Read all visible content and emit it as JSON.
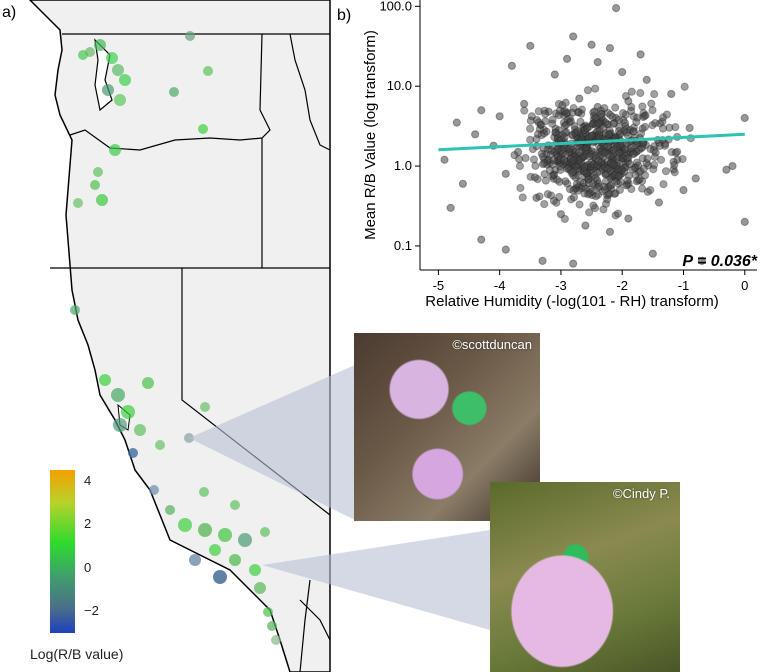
{
  "panel_a": {
    "label": "a)",
    "colorbar": {
      "title": "Log(R/B value)",
      "ticks": [
        "4",
        "2",
        "0",
        "−2"
      ],
      "tick_values": [
        4,
        2,
        0,
        -2
      ],
      "range": [
        -3,
        4.5
      ],
      "colors": [
        "#1f3fbf",
        "#4a6e8a",
        "#3fa06a",
        "#2ddb2d",
        "#b8d22a",
        "#f5a000"
      ]
    },
    "land_color": "#f0f0f0",
    "water_color": "#ffffff"
  },
  "panel_b": {
    "label": "b)",
    "p_value_text": "P = 0.036*",
    "trend_color": "#2bc4b4"
  },
  "photos": [
    {
      "credit": "©scottduncan"
    },
    {
      "credit": "©Cindy P."
    }
  ],
  "chart_data": {
    "type": "scatter",
    "xlabel": "Relative Humidity (-log(101 - RH) transform)",
    "ylabel": "Mean R/B Value (log transform)",
    "xlim": [
      -5.3,
      0.2
    ],
    "ylim": [
      0.05,
      120
    ],
    "yscale": "log",
    "x_ticks": [
      "-5",
      "-4",
      "-3",
      "-2",
      "-1",
      "0"
    ],
    "x_tick_values": [
      -5,
      -4,
      -3,
      -2,
      -1,
      0
    ],
    "y_ticks": [
      "0.1",
      "1.0",
      "10.0",
      "100.0"
    ],
    "y_tick_values": [
      0.1,
      1,
      10,
      100
    ],
    "grid": false,
    "trend_line": {
      "x": [
        -5,
        0
      ],
      "y": [
        1.6,
        2.5
      ]
    },
    "annotation": "P = 0.036*",
    "points": [
      {
        "x": -2.1,
        "y": 95
      },
      {
        "x": -2.8,
        "y": 42
      },
      {
        "x": -2.5,
        "y": 33
      },
      {
        "x": -3.5,
        "y": 32
      },
      {
        "x": -2.2,
        "y": 30
      },
      {
        "x": -1.7,
        "y": 25
      },
      {
        "x": -2.9,
        "y": 22
      },
      {
        "x": -3.8,
        "y": 18
      },
      {
        "x": -2.4,
        "y": 20
      },
      {
        "x": -2.0,
        "y": 15
      },
      {
        "x": -3.1,
        "y": 14
      },
      {
        "x": -1.6,
        "y": 12
      },
      {
        "x": -4.3,
        "y": 5
      },
      {
        "x": -4.7,
        "y": 3.5
      },
      {
        "x": -4.0,
        "y": 4.2
      },
      {
        "x": -3.6,
        "y": 6
      },
      {
        "x": -1.2,
        "y": 8
      },
      {
        "x": -0.9,
        "y": 3
      },
      {
        "x": 0.0,
        "y": 4
      },
      {
        "x": -0.2,
        "y": 1
      },
      {
        "x": 0.0,
        "y": 0.2
      },
      {
        "x": -0.3,
        "y": 0.9
      },
      {
        "x": -4.8,
        "y": 0.3
      },
      {
        "x": -4.3,
        "y": 0.12
      },
      {
        "x": -4.6,
        "y": 0.6
      },
      {
        "x": -3.9,
        "y": 0.09
      },
      {
        "x": -3.3,
        "y": 0.065
      },
      {
        "x": -2.8,
        "y": 0.06
      },
      {
        "x": -0.7,
        "y": 0.065
      },
      {
        "x": -1.5,
        "y": 0.08
      },
      {
        "x": -1.0,
        "y": 0.5
      },
      {
        "x": -4.1,
        "y": 1.8
      },
      {
        "x": -4.4,
        "y": 2.5
      },
      {
        "x": -4.9,
        "y": 1.2
      },
      {
        "x": -3.7,
        "y": 1.5
      },
      {
        "x": -3.9,
        "y": 0.8
      },
      {
        "x": -1.3,
        "y": 1.9
      },
      {
        "x": -1.1,
        "y": 1.2
      },
      {
        "x": -0.8,
        "y": 0.7
      },
      {
        "x": -1.4,
        "y": 0.35
      },
      {
        "x": -3.0,
        "y": 0.25
      },
      {
        "x": -2.6,
        "y": 0.18
      },
      {
        "x": -2.2,
        "y": 0.15
      },
      {
        "x": -1.9,
        "y": 0.22
      },
      {
        "x": -3.4,
        "y": 0.4
      },
      {
        "x": -2.4,
        "y": 5.5
      },
      {
        "x": -2.7,
        "y": 7
      },
      {
        "x": -1.9,
        "y": 6.5
      },
      {
        "x": -3.2,
        "y": 4.8
      },
      {
        "x": -2.1,
        "y": 4.0
      }
    ]
  }
}
